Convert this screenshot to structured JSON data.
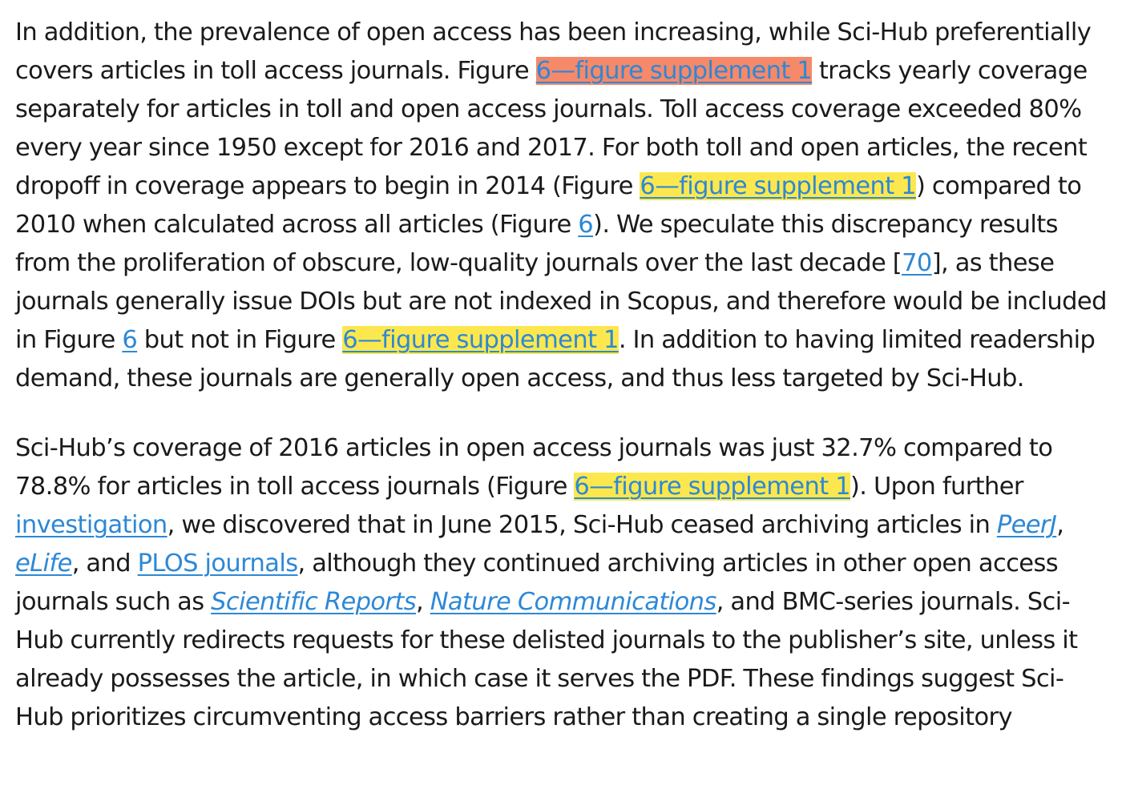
{
  "colors": {
    "text": "#1a1a1a",
    "link": "#2d88d6",
    "highlight_yellow": "#fce84e",
    "highlight_orange": "#f5896a"
  },
  "p1": {
    "t1": "In addition, the prevalence of open access has been increasing, while Sci-Hub preferentially covers articles in toll access journals. Figure ",
    "l1": "6—figure supplement 1",
    "t2": " tracks yearly coverage separately for articles in toll and open access journals. Toll access coverage exceeded 80% every year since 1950 except for 2016 and 2017. For both toll and open articles, the recent dropoff in coverage appears to begin in 2014 (Figure ",
    "l2": "6—figure supplement 1",
    "t3": ") compared to 2010 when calculated across all articles (Figure ",
    "l3": "6",
    "t4": "). We speculate this discrepancy results from the proliferation of obscure, low-quality journals over the last decade [",
    "l4": "70",
    "t5": "], as these journals generally issue DOIs but are not indexed in Scopus, and therefore would be included in Figure ",
    "l5": "6",
    "t6": " but not in Figure ",
    "l6": "6—figure supplement 1",
    "t7": ". In addition to having limited readership demand, these journals are generally open access, and thus less targeted by Sci-Hub."
  },
  "p2": {
    "t1": "Sci-Hub’s coverage of 2016 articles in open access journals was just 32.7% compared to 78.8% for articles in toll access journals (Figure ",
    "l1": "6—figure supplement 1",
    "t2": "). Upon further ",
    "l2": "investigation",
    "t3": ", we discovered that in June 2015, Sci-Hub ceased archiving articles in ",
    "l3": "PeerJ",
    "t4": ", ",
    "l4": "eLife",
    "t5": ", and ",
    "l5": "PLOS journals",
    "t6": ", although they continued archiving articles in other open access journals such as ",
    "l6": "Scientific Reports",
    "t7": ", ",
    "l7": "Nature Communications",
    "t8": ", and BMC-series journals. Sci-Hub currently redirects requests for these delisted journals to the publisher’s site, unless it already possesses the article, in which case it serves the PDF. These findings suggest Sci-Hub prioritizes circumventing access barriers rather than creating a single repository"
  }
}
